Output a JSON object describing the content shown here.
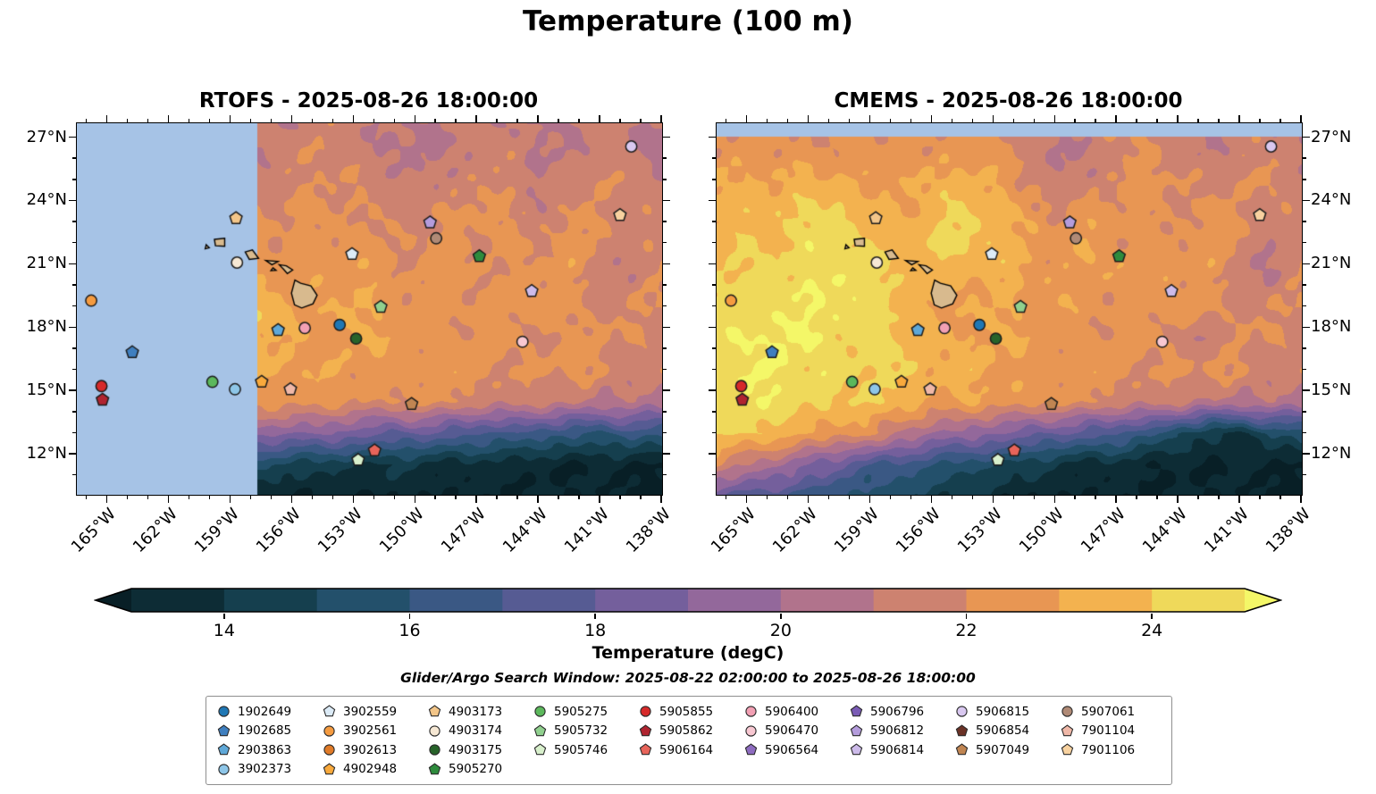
{
  "title": "Temperature (100 m)",
  "search_window": "Glider/Argo Search Window: 2025-08-22 02:00:00 to 2025-08-26 18:00:00",
  "legend": {
    "ncol": 9
  },
  "chart_data": {
    "type": "heatmap",
    "title": "Temperature (100 m)",
    "geo": {
      "lon_min": -166.5,
      "lon_max": -138,
      "lat_min": 10.1,
      "lat_max": 27.7
    },
    "x_ticks": {
      "lons": [
        -165,
        -162,
        -159,
        -156,
        -153,
        -150,
        -147,
        -144,
        -141,
        -138
      ],
      "labels": [
        "165°W",
        "162°W",
        "159°W",
        "156°W",
        "153°W",
        "150°W",
        "147°W",
        "144°W",
        "141°W",
        "138°W"
      ]
    },
    "y_ticks": {
      "lats": [
        27,
        24,
        21,
        18,
        15,
        12
      ],
      "labels": [
        "27°N",
        "24°N",
        "21°N",
        "18°N",
        "15°N",
        "12°N"
      ]
    },
    "grid_lon": [
      -166.5,
      -165,
      -163.5,
      -162,
      -160.5,
      -159,
      -157.5,
      -156,
      -154.5,
      -153,
      -151.5,
      -150,
      -148.5,
      -147,
      -145.5,
      -144,
      -142.5,
      -141,
      -139.5,
      -138
    ],
    "grid_lat": [
      10,
      11.5,
      13,
      14.5,
      16,
      17.5,
      19,
      20.5,
      22,
      23.5,
      25,
      26.5,
      28
    ],
    "panels": [
      {
        "id": "rtofs",
        "title": "RTOFS - 2025-08-26 18:00:00",
        "mask": {
          "type": "west",
          "lon": -157.7,
          "color": "#a6c3e6"
        },
        "temperature": [
          [
            14.5,
            14,
            14,
            13.5,
            13.5,
            13.5,
            13,
            13,
            13,
            13,
            13,
            13,
            13,
            13,
            13,
            13,
            13,
            13,
            13,
            13
          ],
          [
            17,
            17,
            16.5,
            16,
            15.5,
            15,
            15,
            14.5,
            14.5,
            14,
            14,
            14,
            13.5,
            13.5,
            13.5,
            13,
            13,
            13,
            13,
            13
          ],
          [
            21,
            21,
            21,
            20.5,
            20,
            20,
            19.5,
            19,
            19,
            18.5,
            18,
            18,
            17.5,
            17,
            17,
            16.5,
            16,
            16,
            16.5,
            16
          ],
          [
            23,
            23,
            23.5,
            23.5,
            23,
            23,
            22.5,
            22.5,
            22.5,
            22,
            22,
            22.5,
            22,
            21.5,
            21.5,
            21.5,
            21,
            21,
            21,
            20.5
          ],
          [
            23.5,
            23.5,
            24,
            24,
            24,
            23.5,
            23,
            23,
            23,
            22.5,
            22.5,
            22.5,
            22.5,
            22.5,
            22,
            22,
            22.5,
            22,
            21.5,
            21.5
          ],
          [
            23,
            23.5,
            23.5,
            24,
            24.5,
            24.5,
            23.5,
            23,
            22.5,
            23,
            23,
            22.5,
            22,
            22.5,
            22.5,
            22,
            22,
            22.5,
            22,
            21.5
          ],
          [
            23,
            23,
            23,
            23.5,
            23.5,
            24.5,
            24,
            23,
            23,
            23,
            22.5,
            22.5,
            22.5,
            22,
            22.5,
            22.5,
            22,
            21.5,
            22,
            22
          ],
          [
            22.5,
            22.5,
            22.5,
            23,
            23,
            23,
            23,
            22.5,
            22.5,
            23,
            22.5,
            22,
            22.5,
            22.5,
            22,
            22.5,
            22.5,
            21.5,
            21,
            22
          ],
          [
            22,
            22,
            22.5,
            22.5,
            22.5,
            22.5,
            22.5,
            22,
            22.5,
            22.5,
            22,
            22,
            22.5,
            22,
            22,
            22,
            22.5,
            22,
            21.5,
            21.5
          ],
          [
            22,
            22,
            22,
            22,
            22,
            22.5,
            22,
            22,
            22.5,
            22,
            21.5,
            21.5,
            22,
            22.5,
            22,
            21.5,
            22,
            22,
            21.5,
            21.5
          ],
          [
            21.5,
            21.5,
            21.5,
            21.5,
            22,
            22,
            21.5,
            21.5,
            22,
            22,
            21.5,
            21,
            21.5,
            22,
            21.5,
            21,
            21.5,
            22,
            21.5,
            21
          ],
          [
            21,
            21,
            21,
            21,
            21.5,
            21.5,
            21,
            21.5,
            22,
            21.5,
            21,
            20.5,
            21,
            21.5,
            21.5,
            21,
            21,
            21.5,
            21,
            20.5
          ],
          [
            21,
            21,
            21,
            21,
            21,
            21,
            21,
            21,
            21.5,
            21.5,
            21,
            21,
            21.5,
            21.5,
            21,
            20.5,
            21,
            21.5,
            21.5,
            21
          ]
        ]
      },
      {
        "id": "cmems",
        "title": "CMEMS - 2025-08-26 18:00:00",
        "mask": {
          "type": "north",
          "lat": 27.08,
          "color": "#a6c3e6"
        },
        "temperature": [
          [
            18,
            17.5,
            17,
            16.5,
            16,
            15.5,
            15,
            14.5,
            14,
            13.5,
            13,
            13,
            13,
            13,
            13,
            13,
            13,
            13,
            13,
            13
          ],
          [
            22,
            21,
            20,
            19,
            18,
            17,
            16.5,
            16,
            15.5,
            15,
            14.5,
            14,
            13.5,
            13.5,
            13,
            13,
            13,
            13,
            13,
            13
          ],
          [
            24,
            24,
            23.5,
            23,
            22.5,
            22,
            21,
            20,
            19.5,
            19,
            18.5,
            18,
            17.5,
            17,
            16.5,
            15,
            14,
            14,
            15,
            15.5
          ],
          [
            24.5,
            25,
            24.5,
            24.5,
            24,
            24,
            23.5,
            23,
            23,
            22.5,
            22.5,
            22.5,
            22,
            21.5,
            21.5,
            21.5,
            20.5,
            21,
            21,
            20.5
          ],
          [
            25,
            25,
            25,
            24.5,
            24.5,
            24,
            24,
            23.5,
            23.5,
            23,
            22.5,
            22.5,
            22.5,
            22.5,
            22,
            22,
            22.5,
            22,
            21.5,
            21.5
          ],
          [
            24.5,
            25,
            25,
            25,
            24.5,
            24.5,
            24,
            23.5,
            23,
            23,
            23,
            22.5,
            22,
            22.5,
            22.5,
            22,
            20.5,
            22.5,
            22,
            21.5
          ],
          [
            24.5,
            24.5,
            24.5,
            25,
            25,
            24.5,
            23.5,
            23,
            23,
            23,
            22.5,
            23,
            22.5,
            22,
            22.5,
            22.5,
            22,
            21.5,
            22,
            22
          ],
          [
            24,
            24,
            24.5,
            24.5,
            25,
            24.5,
            24,
            23.5,
            23,
            23.5,
            23,
            22.5,
            22.5,
            23,
            22.5,
            22.5,
            22.5,
            21.5,
            20.5,
            22
          ],
          [
            23.5,
            24,
            24,
            24.5,
            24.5,
            24,
            23.5,
            24,
            24.5,
            24,
            23,
            22.5,
            23,
            22.5,
            22,
            22.5,
            22.5,
            22,
            21,
            21.5
          ],
          [
            23.5,
            23.5,
            24,
            24,
            24.5,
            23.5,
            23,
            23.5,
            24.5,
            23.5,
            22.5,
            22,
            22.5,
            22.5,
            22,
            22,
            22.5,
            22,
            21.5,
            21.5
          ],
          [
            23,
            23,
            23,
            23.5,
            23,
            22.5,
            23,
            23,
            23.5,
            23,
            22,
            21,
            21.5,
            22,
            22.5,
            22,
            21.5,
            22,
            22,
            21.5
          ],
          [
            22,
            22.5,
            22.5,
            22,
            22,
            22.5,
            22.5,
            22,
            22.5,
            22.5,
            22,
            20.5,
            21,
            22,
            22,
            21.5,
            21,
            21.5,
            21.5,
            21
          ],
          [
            22,
            22,
            22,
            22,
            22,
            22,
            22,
            22,
            22,
            22,
            22,
            22,
            22,
            22,
            22,
            21.5,
            21.5,
            21.5,
            21.5,
            21.5
          ]
        ]
      }
    ],
    "colorbar": {
      "label": "Temperature (degC)",
      "range": [
        13,
        25
      ],
      "level_step": 1,
      "tick_values": [
        14,
        16,
        18,
        20,
        22,
        24
      ],
      "colors": [
        "#0d2c35",
        "#153f4e",
        "#23506b",
        "#3a5884",
        "#565b93",
        "#745f9c",
        "#93689b",
        "#b1738c",
        "#cd8270",
        "#e89653",
        "#f3b24f",
        "#efd95a"
      ],
      "under": "#081f26",
      "over": "#f4f768"
    },
    "islands": {
      "fill": "#d8ba8e",
      "stroke": "#000000",
      "polygons": [
        [
          [
            -155.88,
            20.27
          ],
          [
            -155.6,
            20.12
          ],
          [
            -155.1,
            20.0
          ],
          [
            -154.8,
            19.55
          ],
          [
            -155.0,
            19.15
          ],
          [
            -155.55,
            18.95
          ],
          [
            -155.9,
            19.1
          ],
          [
            -156.05,
            19.65
          ]
        ],
        [
          [
            -156.65,
            21.0
          ],
          [
            -156.3,
            20.95
          ],
          [
            -155.99,
            20.75
          ],
          [
            -156.25,
            20.58
          ],
          [
            -156.45,
            20.8
          ]
        ],
        [
          [
            -158.3,
            21.6
          ],
          [
            -157.95,
            21.7
          ],
          [
            -157.65,
            21.3
          ],
          [
            -158.1,
            21.25
          ]
        ],
        [
          [
            -159.8,
            22.2
          ],
          [
            -159.3,
            22.25
          ],
          [
            -159.3,
            21.87
          ],
          [
            -159.75,
            21.9
          ]
        ],
        [
          [
            -157.3,
            21.2
          ],
          [
            -156.7,
            21.15
          ],
          [
            -157.0,
            21.0
          ]
        ],
        [
          [
            -156.95,
            20.85
          ],
          [
            -156.8,
            20.73
          ],
          [
            -157.05,
            20.72
          ]
        ],
        [
          [
            -160.2,
            21.95
          ],
          [
            -160.05,
            21.8
          ],
          [
            -160.25,
            21.75
          ]
        ]
      ]
    },
    "floats": [
      {
        "id": "1902649",
        "marker": "circle",
        "color": "#1f77b4",
        "lon": -153.7,
        "lat": 18.15
      },
      {
        "id": "1902685",
        "marker": "pentagon",
        "color": "#3f7fbf",
        "lon": -163.8,
        "lat": 16.85
      },
      {
        "id": "2903863",
        "marker": "pentagon",
        "color": "#5fa8d8",
        "lon": -156.7,
        "lat": 17.9
      },
      {
        "id": "3902373",
        "marker": "circle",
        "color": "#8ec6e8",
        "lon": -158.8,
        "lat": 15.1
      },
      {
        "id": "3902559",
        "marker": "pentagon",
        "color": "#dcebf7",
        "lon": -153.1,
        "lat": 21.5
      },
      {
        "id": "3902561",
        "marker": "circle",
        "color": "#f59b40",
        "lon": -165.8,
        "lat": 19.3
      },
      {
        "id": "3902613",
        "marker": "circle",
        "color": "#e07b28"
      },
      {
        "id": "4902948",
        "marker": "pentagon",
        "color": "#f9a93c",
        "lon": -157.5,
        "lat": 15.45
      },
      {
        "id": "4903173",
        "marker": "pentagon",
        "color": "#f3c689",
        "lon": -158.75,
        "lat": 23.2
      },
      {
        "id": "4903174",
        "marker": "circle",
        "color": "#f6e8d4",
        "lon": -158.7,
        "lat": 21.1
      },
      {
        "id": "4903175",
        "marker": "circle",
        "color": "#27632a",
        "lon": -152.9,
        "lat": 17.5
      },
      {
        "id": "5905270",
        "marker": "pentagon",
        "color": "#2e8b3d",
        "lon": -146.9,
        "lat": 21.4
      },
      {
        "id": "5905275",
        "marker": "circle",
        "color": "#5cb85c",
        "lon": -159.9,
        "lat": 15.45
      },
      {
        "id": "5905732",
        "marker": "pentagon",
        "color": "#90d08e",
        "lon": -151.7,
        "lat": 19.0
      },
      {
        "id": "5905746",
        "marker": "pentagon",
        "color": "#d8f0cc",
        "lon": -152.8,
        "lat": 11.75
      },
      {
        "id": "5905855",
        "marker": "circle",
        "color": "#d62a2a",
        "lon": -165.3,
        "lat": 15.25
      },
      {
        "id": "5905862",
        "marker": "pentagon",
        "color": "#b02430",
        "lon": -165.25,
        "lat": 14.6
      },
      {
        "id": "5906164",
        "marker": "pentagon",
        "color": "#e8645a",
        "lon": -152.0,
        "lat": 12.2
      },
      {
        "id": "5906400",
        "marker": "circle",
        "color": "#f2a0b4",
        "lon": -155.4,
        "lat": 18.0
      },
      {
        "id": "5906470",
        "marker": "circle",
        "color": "#f8c8d2",
        "lon": -144.8,
        "lat": 17.35
      },
      {
        "id": "5906564",
        "marker": "pentagon",
        "color": "#8e6cc0"
      },
      {
        "id": "5906796",
        "marker": "pentagon",
        "color": "#7a5bb5"
      },
      {
        "id": "5906812",
        "marker": "pentagon",
        "color": "#b49cdc",
        "lon": -149.3,
        "lat": 23.0
      },
      {
        "id": "5906814",
        "marker": "pentagon",
        "color": "#cdbbea",
        "lon": -144.35,
        "lat": 19.75
      },
      {
        "id": "5906815",
        "marker": "circle",
        "color": "#d9c8f0",
        "lon": -139.5,
        "lat": 26.6
      },
      {
        "id": "5906854",
        "marker": "pentagon",
        "color": "#6b3226"
      },
      {
        "id": "5907049",
        "marker": "pentagon",
        "color": "#c08552",
        "lon": -150.2,
        "lat": 14.4
      },
      {
        "id": "5907061",
        "marker": "circle",
        "color": "#b08a76",
        "lon": -149.0,
        "lat": 22.25
      },
      {
        "id": "7901104",
        "marker": "pentagon",
        "color": "#f0b8a8",
        "lon": -156.1,
        "lat": 15.1
      },
      {
        "id": "7901106",
        "marker": "pentagon",
        "color": "#f8d2a0",
        "lon": -140.05,
        "lat": 23.35
      }
    ]
  }
}
